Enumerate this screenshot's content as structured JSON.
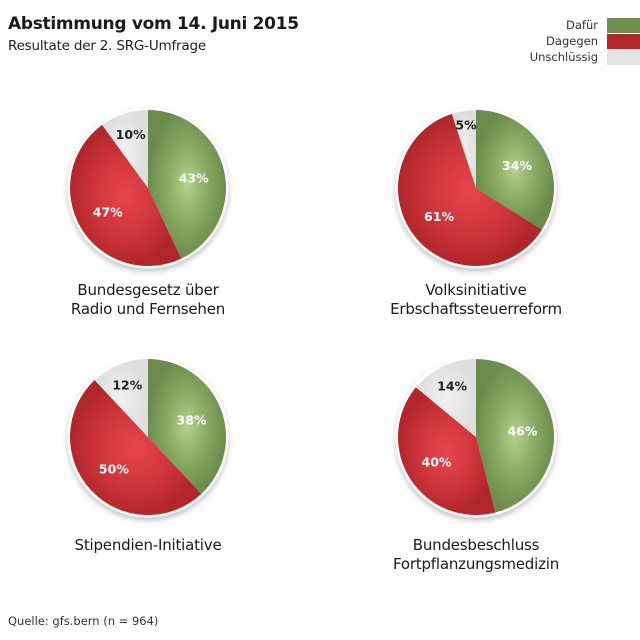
{
  "header": {
    "title": "Abstimmung vom 14. Juni 2015",
    "subtitle": "Resultate der 2. SRG-Umfrage"
  },
  "legend": [
    {
      "label": "Dafür",
      "color": "#6e8f4e"
    },
    {
      "label": "Dagegen",
      "color": "#b0262b"
    },
    {
      "label": "Unschlüssig",
      "color": "#e3e3e3"
    }
  ],
  "footer": {
    "source": "Quelle: gfs.bern (n = 964)"
  },
  "chart_data": [
    {
      "type": "pie",
      "title": "Bundesgesetz über Radio und Fernsehen",
      "title_lines": [
        "Bundesgesetz über",
        "Radio und Fernsehen"
      ],
      "categories": [
        "Dafür",
        "Dagegen",
        "Unschlüssig"
      ],
      "values": [
        43,
        47,
        10
      ],
      "labels": [
        "43%",
        "47%",
        "10%"
      ]
    },
    {
      "type": "pie",
      "title": "Volksinitiative Erbschaftssteuerreform",
      "title_lines": [
        "Volksinitiative",
        "Erbschaftssteuerreform"
      ],
      "categories": [
        "Dafür",
        "Dagegen",
        "Unschlüssig"
      ],
      "values": [
        34,
        61,
        5
      ],
      "labels": [
        "34%",
        "61%",
        "5%"
      ]
    },
    {
      "type": "pie",
      "title": "Stipendien-Initiative",
      "title_lines": [
        "Stipendien-Initiative"
      ],
      "categories": [
        "Dafür",
        "Dagegen",
        "Unschlüssig"
      ],
      "values": [
        38,
        50,
        12
      ],
      "labels": [
        "38%",
        "50%",
        "12%"
      ]
    },
    {
      "type": "pie",
      "title": "Bundesbeschluss Fortpflanzungsmedizin",
      "title_lines": [
        "Bundesbeschluss",
        "Fortpflanzungsmedizin"
      ],
      "categories": [
        "Dafür",
        "Dagegen",
        "Unschlüssig"
      ],
      "values": [
        46,
        40,
        14
      ],
      "labels": [
        "46%",
        "40%",
        "14%"
      ]
    }
  ]
}
